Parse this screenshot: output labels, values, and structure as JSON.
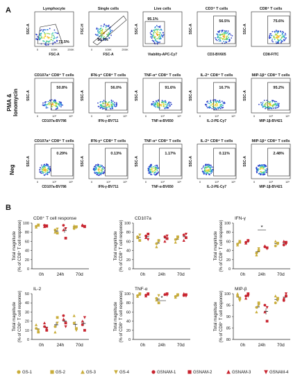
{
  "panelA": {
    "label": "A",
    "row_labels": {
      "pma": "PMA &",
      "pma2": "Ionomycin",
      "neg": "Neg"
    },
    "rows": [
      [
        {
          "title": "Lymphocyte",
          "ylabel": "SSC-A",
          "xlabel": "FSC-A",
          "pct": "72.5%",
          "gate": "poly",
          "xt": [
            "0",
            "100K",
            "200K"
          ]
        },
        {
          "title": "Single cells",
          "ylabel": "FSC-H",
          "xlabel": "FSC-A",
          "pct": "99.7%",
          "gate": "diag",
          "xt": [
            "0",
            "100K",
            "200K"
          ]
        },
        {
          "title": "Live cells",
          "ylabel": "SSC-A",
          "xlabel": "Viability-APC-Cy7",
          "pct": "95.1%",
          "gate": "left",
          "xt": []
        },
        {
          "title": "CD3⁺ T cells",
          "ylabel": "SSC-A",
          "xlabel": "CD3-BV605",
          "pct": "56.5%",
          "gate": "right",
          "xt": []
        },
        {
          "title": "CD8⁺ T cells",
          "ylabel": "SSC-A",
          "xlabel": "CD8-FITC",
          "pct": "75.6%",
          "gate": "right",
          "xt": []
        }
      ],
      [
        {
          "title": "CD107a⁺ CD8⁺ T cells",
          "ylabel": "SSC-A",
          "xlabel": "CD107a-BV786",
          "pct": "50.8%",
          "gate": "right",
          "xt": [
            "0",
            "10³",
            "10⁵"
          ]
        },
        {
          "title": "IFN-γ⁺ CD8⁺ T cells",
          "ylabel": "SSC-A",
          "xlabel": "IFN-γ-BV711",
          "pct": "56.0%",
          "gate": "right",
          "xt": [
            "0",
            "10³",
            "10⁵"
          ]
        },
        {
          "title": "TNF-α⁺ CD8⁺ T cells",
          "ylabel": "SSC-A",
          "xlabel": "TNF-α-BV650",
          "pct": "91.6%",
          "gate": "right",
          "xt": [
            "0",
            "10³",
            "10⁵"
          ]
        },
        {
          "title": "IL-2⁺ CD8⁺ T cells",
          "ylabel": "SSC-A",
          "xlabel": "IL-2-PE-Cy7",
          "pct": "16.7%",
          "gate": "right",
          "xt": [
            "0",
            "10³",
            "10⁵"
          ]
        },
        {
          "title": "MIP-1β⁺ CD8⁺ T cells",
          "ylabel": "SSC-A",
          "xlabel": "MIP-1β-BV421",
          "pct": "95.2%",
          "gate": "right",
          "xt": [
            "0",
            "10³",
            "10⁵"
          ]
        }
      ],
      [
        {
          "title": "CD107a⁺ CD8⁺ T cells",
          "ylabel": "SSC-A",
          "xlabel": "CD107a-BV786",
          "pct": "0.29%",
          "gate": "right",
          "xt": [
            "0",
            "10³",
            "10⁵"
          ]
        },
        {
          "title": "IFN-γ⁺ CD8⁺ T cells",
          "ylabel": "SSC-A",
          "xlabel": "IFN-γ-BV711",
          "pct": "0.13%",
          "gate": "right",
          "xt": [
            "0",
            "10³",
            "10⁵"
          ]
        },
        {
          "title": "TNF-α⁺ CD8⁺ T cells",
          "ylabel": "SSC-A",
          "xlabel": "TNF-α-BV650",
          "pct": "1.17%",
          "gate": "right",
          "xt": [
            "0",
            "10³",
            "10⁵"
          ]
        },
        {
          "title": "IL-2⁺ CD8⁺ T cells",
          "ylabel": "SSC-A",
          "xlabel": "IL-2-PE-Cy7",
          "pct": "0.11%",
          "gate": "right",
          "xt": [
            "0",
            "10³",
            "10⁵"
          ]
        },
        {
          "title": "MIP-1β⁺ CD8⁺ T cells",
          "ylabel": "SSC-A",
          "xlabel": "MIP-1β-BV421",
          "pct": "2.48%",
          "gate": "right",
          "xt": [
            "0",
            "10³",
            "10⁵"
          ]
        }
      ]
    ]
  },
  "panelB": {
    "label": "B",
    "ylabel1": "Total magnitude",
    "ylabel2": "(% of CD8⁺ T cell response)",
    "timepoints": [
      "0h",
      "24h",
      "70d"
    ],
    "colors": {
      "gs": "#c9ad3a",
      "gsnam": "#c8242f"
    }
  },
  "chart_data": [
    {
      "type": "scatter",
      "title": "CD8⁺ T cell response",
      "categories": [
        "0h",
        "24h",
        "70d"
      ],
      "ylim": [
        0,
        100
      ],
      "yticks": [
        0,
        20,
        40,
        60,
        80,
        100
      ],
      "series": [
        {
          "name": "GS",
          "values": [
            [
              93,
              95,
              91,
              96
            ],
            [
              85,
              78,
              80,
              87
            ],
            [
              88,
              92,
              94,
              90
            ]
          ]
        },
        {
          "name": "GSNAM",
          "values": [
            [
              95,
              93,
              92,
              94
            ],
            [
              95,
              67,
              85,
              88
            ],
            [
              94,
              92,
              96,
              93
            ]
          ]
        }
      ],
      "sig": []
    },
    {
      "type": "scatter",
      "title": "CD107a",
      "categories": [
        "0h",
        "24h",
        "70d"
      ],
      "ylim": [
        0,
        100
      ],
      "yticks": [
        0,
        20,
        40,
        60,
        80,
        100
      ],
      "series": [
        {
          "name": "GS",
          "values": [
            [
              70,
              62,
              68,
              74
            ],
            [
              55,
              62,
              48,
              60
            ],
            [
              64,
              70,
              58,
              66
            ]
          ]
        },
        {
          "name": "GSNAM",
          "values": [
            [
              72,
              76,
              68,
              64
            ],
            [
              70,
              66,
              60,
              72
            ],
            [
              74,
              68,
              62,
              76
            ]
          ]
        }
      ],
      "sig": []
    },
    {
      "type": "scatter",
      "title": "IFN-γ",
      "categories": [
        "0h",
        "24h",
        "70d"
      ],
      "ylim": [
        0,
        100
      ],
      "yticks": [
        0,
        20,
        40,
        60,
        80,
        100
      ],
      "series": [
        {
          "name": "GS",
          "values": [
            [
              54,
              58,
              52,
              60
            ],
            [
              34,
              40,
              30,
              44
            ],
            [
              50,
              56,
              60,
              54
            ]
          ]
        },
        {
          "name": "GSNAM",
          "values": [
            [
              58,
              62,
              56,
              60
            ],
            [
              48,
              46,
              50,
              44
            ],
            [
              52,
              58,
              60,
              54
            ]
          ]
        }
      ],
      "sig": [
        {
          "cat": 1,
          "text": "*"
        }
      ]
    },
    {
      "type": "scatter",
      "title": "IL-2",
      "categories": [
        "0h",
        "24h",
        "70d"
      ],
      "ylim": [
        0,
        50
      ],
      "yticks": [
        0,
        10,
        20,
        30,
        40,
        50
      ],
      "series": [
        {
          "name": "GS",
          "values": [
            [
              12,
              8,
              16,
              10
            ],
            [
              14,
              24,
              8,
              18
            ],
            [
              18,
              12,
              26,
              10
            ]
          ]
        },
        {
          "name": "GSNAM",
          "values": [
            [
              14,
              10,
              18,
              12
            ],
            [
              26,
              18,
              22,
              14
            ],
            [
              16,
              10,
              20,
              24
            ]
          ]
        }
      ],
      "sig": []
    },
    {
      "type": "scatter",
      "title": "TNF-α",
      "categories": [
        "0h",
        "24h",
        "70d"
      ],
      "ylim": [
        0,
        100
      ],
      "yticks": [
        0,
        20,
        40,
        60,
        80,
        100
      ],
      "series": [
        {
          "name": "GS",
          "values": [
            [
              96,
              100,
              94,
              98
            ],
            [
              90,
              80,
              86,
              96
            ],
            [
              94,
              98,
              92,
              96
            ]
          ]
        },
        {
          "name": "GSNAM",
          "values": [
            [
              97,
              99,
              95,
              100
            ],
            [
              98,
              100,
              99,
              97
            ],
            [
              96,
              98,
              100,
              95
            ]
          ]
        }
      ],
      "sig": [
        {
          "cat": 1,
          "text": "*"
        }
      ]
    },
    {
      "type": "scatter",
      "title": "MIP-β",
      "categories": [
        "0h",
        "24h",
        "70d"
      ],
      "ylim": [
        80,
        100
      ],
      "yticks": [
        80,
        85,
        90,
        95,
        100
      ],
      "series": [
        {
          "name": "GS",
          "values": [
            [
              99,
              98,
              100,
              97
            ],
            [
              94,
              96,
              92,
              95
            ],
            [
              96,
              98,
              99,
              97
            ]
          ]
        },
        {
          "name": "GSNAM",
          "values": [
            [
              99,
              100,
              98,
              99
            ],
            [
              95,
              88,
              92,
              94
            ],
            [
              97,
              99,
              98,
              100
            ]
          ]
        }
      ],
      "sig": []
    }
  ],
  "legend": [
    {
      "label": "GS-1",
      "group": "gs",
      "shape": "circle"
    },
    {
      "label": "GS-2",
      "group": "gs",
      "shape": "square"
    },
    {
      "label": "GS-3",
      "group": "gs",
      "shape": "tri-up"
    },
    {
      "label": "GS-4",
      "group": "gs",
      "shape": "tri-down"
    },
    {
      "label": "GSNAM-1",
      "group": "gsnam",
      "shape": "circle"
    },
    {
      "label": "GSNAM-2",
      "group": "gsnam",
      "shape": "square"
    },
    {
      "label": "GSNAM-3",
      "group": "gsnam",
      "shape": "tri-up"
    },
    {
      "label": "GSNAM-4",
      "group": "gsnam",
      "shape": "tri-down"
    }
  ]
}
